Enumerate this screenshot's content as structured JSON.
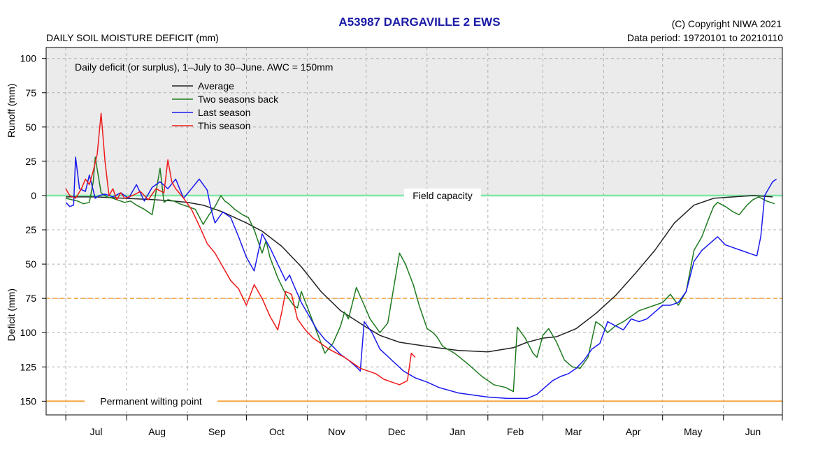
{
  "chart_data": {
    "type": "line",
    "title": "A53987  DARGAVILLE 2 EWS",
    "ylabel": "DAILY SOIL MOISTURE DEFICIT (mm)",
    "ylabel_upper": "Runoff (mm)",
    "ylabel_lower": "Deficit (mm)",
    "copyright": "(C) Copyright NIWA  2021",
    "data_period": "Data period:  19720101  to  20210110",
    "note": "Daily deficit (or surplus), 1–July to 30–June.  AWC = 150mm",
    "field_capacity_label": "Field capacity",
    "wilting_label": "Permanent wilting point",
    "y_tick_labels": [
      "100",
      "75",
      "50",
      "25",
      "0",
      "25",
      "50",
      "75",
      "100",
      "125",
      "150"
    ],
    "y_tick_values": [
      100,
      75,
      50,
      25,
      0,
      -25,
      -50,
      -75,
      -100,
      -125,
      -150
    ],
    "ylim": [
      -160,
      108
    ],
    "xlim": [
      -10,
      365
    ],
    "month_labels": [
      "Jul",
      "Aug",
      "Sep",
      "Oct",
      "Nov",
      "Dec",
      "Jan",
      "Feb",
      "Mar",
      "Apr",
      "May",
      "Jun"
    ],
    "month_starts": [
      0,
      31,
      62,
      92,
      123,
      153,
      184,
      215,
      243,
      274,
      304,
      335,
      365
    ],
    "grid": true,
    "legend_position": "top-left",
    "reference_lines": [
      {
        "name": "Field capacity",
        "y": 0,
        "color": "#7ee8a6"
      },
      {
        "name": "75 mm deficit",
        "y": -75,
        "color": "#f3a23a"
      },
      {
        "name": "Permanent wilting point",
        "y": -150,
        "color": "#f3a23a"
      }
    ],
    "series": [
      {
        "name": "Average",
        "color": "#222222",
        "x": [
          0,
          15,
          30,
          45,
          55,
          62,
          70,
          80,
          92,
          100,
          110,
          120,
          130,
          140,
          153,
          160,
          170,
          184,
          200,
          215,
          228,
          235,
          243,
          250,
          260,
          270,
          280,
          290,
          300,
          310,
          320,
          330,
          340,
          350,
          360
        ],
        "y": [
          -1,
          -1,
          -2,
          -3,
          -4,
          -5,
          -7,
          -12,
          -20,
          -26,
          -37,
          -52,
          -70,
          -84,
          -96,
          -102,
          -107,
          -110,
          -113,
          -114,
          -111,
          -107,
          -104,
          -103,
          -97,
          -86,
          -73,
          -57,
          -40,
          -20,
          -7,
          -2,
          -1,
          0,
          -1
        ]
      },
      {
        "name": "Two seasons back",
        "color": "#1f7a1f",
        "x": [
          0,
          3,
          6,
          9,
          12,
          14,
          15,
          18,
          20,
          21,
          24,
          26,
          28,
          30,
          33,
          36,
          40,
          44,
          48,
          50,
          52,
          55,
          58,
          62,
          66,
          70,
          73,
          76,
          79,
          81,
          83,
          86,
          90,
          93,
          96,
          100,
          102,
          104,
          108,
          112,
          116,
          118,
          120,
          124,
          128,
          132,
          136,
          140,
          142,
          144,
          148,
          152,
          155,
          160,
          164,
          170,
          173,
          177,
          180,
          184,
          187,
          189,
          192,
          198,
          205,
          212,
          218,
          224,
          228,
          230,
          234,
          238,
          240,
          243,
          246,
          250,
          254,
          258,
          262,
          266,
          270,
          273,
          276,
          280,
          284,
          288,
          292,
          296,
          300,
          304,
          308,
          312,
          316,
          320,
          324,
          328,
          330,
          332,
          336,
          340,
          343,
          347,
          350,
          353,
          357,
          361
        ],
        "y": [
          -2,
          -3,
          -4,
          -6,
          -5,
          10,
          28,
          2,
          0,
          -1,
          -2,
          -3,
          -4,
          -5,
          -4,
          -7,
          -10,
          -14,
          20,
          -5,
          -3,
          -4,
          -6,
          -8,
          -10,
          -21,
          -14,
          -8,
          0,
          -4,
          -6,
          -10,
          -14,
          -16,
          -25,
          -42,
          -33,
          -45,
          -60,
          -72,
          -80,
          -82,
          -70,
          -85,
          -100,
          -115,
          -108,
          -95,
          -85,
          -90,
          -67,
          -80,
          -90,
          -100,
          -93,
          -42,
          -50,
          -65,
          -80,
          -97,
          -100,
          -103,
          -110,
          -115,
          -123,
          -132,
          -138,
          -140,
          -143,
          -96,
          -104,
          -115,
          -118,
          -102,
          -97,
          -107,
          -120,
          -125,
          -126,
          -118,
          -92,
          -95,
          -100,
          -95,
          -92,
          -88,
          -84,
          -82,
          -80,
          -78,
          -72,
          -80,
          -70,
          -40,
          -30,
          -15,
          -8,
          -5,
          -8,
          -12,
          -14,
          -7,
          -3,
          -1,
          -4,
          -6
        ]
      },
      {
        "name": "Last season",
        "color": "#1a1aee",
        "x": [
          0,
          2,
          4,
          5,
          7,
          10,
          12,
          15,
          17,
          20,
          24,
          28,
          32,
          36,
          40,
          44,
          48,
          52,
          56,
          60,
          64,
          68,
          72,
          74,
          76,
          80,
          84,
          88,
          92,
          96,
          100,
          104,
          108,
          112,
          114,
          116,
          120,
          124,
          128,
          132,
          136,
          140,
          144,
          148,
          150,
          152,
          156,
          160,
          166,
          172,
          178,
          184,
          190,
          200,
          215,
          225,
          235,
          240,
          244,
          248,
          252,
          256,
          260,
          264,
          268,
          272,
          276,
          280,
          284,
          288,
          292,
          296,
          300,
          304,
          308,
          312,
          316,
          320,
          324,
          328,
          332,
          336,
          340,
          344,
          348,
          352,
          354,
          356,
          358,
          360,
          362
        ],
        "y": [
          -5,
          -8,
          -7,
          28,
          5,
          3,
          15,
          -2,
          0,
          1,
          -1,
          2,
          -2,
          8,
          -4,
          6,
          10,
          5,
          12,
          -2,
          5,
          12,
          4,
          -10,
          -20,
          -12,
          -16,
          -30,
          -45,
          -55,
          -28,
          -38,
          -50,
          -62,
          -58,
          -65,
          -78,
          -88,
          -98,
          -105,
          -110,
          -116,
          -120,
          -125,
          -128,
          -92,
          -100,
          -112,
          -120,
          -128,
          -133,
          -136,
          -140,
          -144,
          -147,
          -148,
          -148,
          -145,
          -140,
          -135,
          -132,
          -130,
          -126,
          -120,
          -112,
          -108,
          -92,
          -95,
          -98,
          -90,
          -92,
          -90,
          -85,
          -80,
          -80,
          -78,
          -70,
          -48,
          -40,
          -35,
          -30,
          -36,
          -38,
          -40,
          -42,
          -44,
          -30,
          0,
          5,
          10,
          12
        ]
      },
      {
        "name": "This season",
        "color": "#ee1a1a",
        "x": [
          0,
          2,
          5,
          8,
          10,
          12,
          14,
          16,
          18,
          20,
          22,
          24,
          26,
          28,
          30,
          34,
          38,
          42,
          46,
          50,
          52,
          54,
          56,
          60,
          64,
          68,
          72,
          76,
          80,
          84,
          88,
          92,
          96,
          100,
          104,
          108,
          110,
          112,
          115,
          118,
          122,
          126,
          130,
          134,
          138,
          142,
          146,
          150,
          154,
          158,
          162,
          166,
          170,
          174,
          176,
          178
        ],
        "y": [
          5,
          0,
          -2,
          5,
          12,
          8,
          18,
          30,
          60,
          25,
          0,
          5,
          -3,
          2,
          -2,
          0,
          3,
          -3,
          5,
          2,
          26,
          10,
          5,
          -2,
          -10,
          -22,
          -35,
          -42,
          -52,
          -62,
          -68,
          -80,
          -65,
          -75,
          -88,
          -98,
          -85,
          -70,
          -72,
          -90,
          -98,
          -104,
          -108,
          -112,
          -115,
          -118,
          -122,
          -126,
          -128,
          -130,
          -134,
          -136,
          -138,
          -135,
          -115,
          -118
        ]
      }
    ]
  }
}
